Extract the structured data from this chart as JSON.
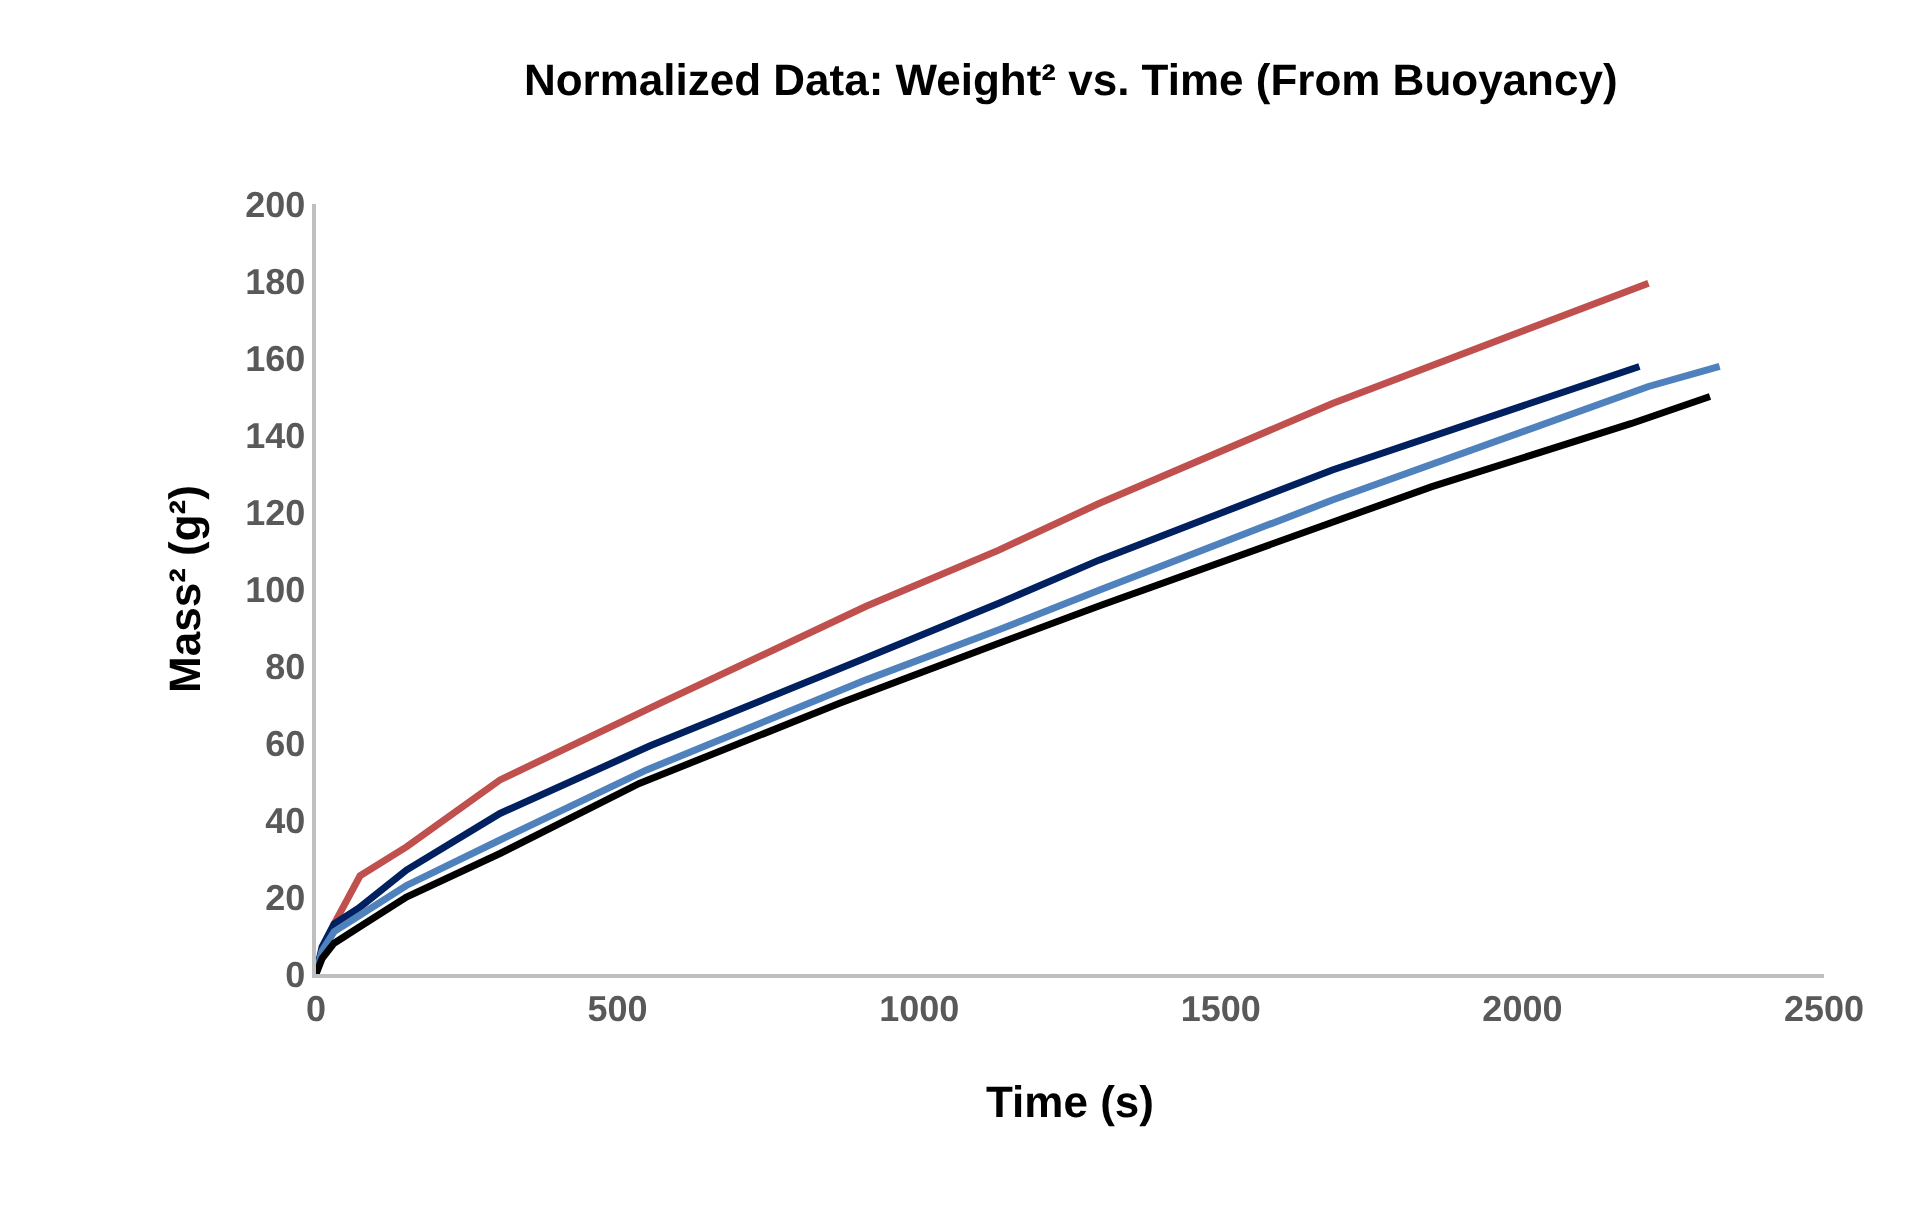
{
  "chart_data": {
    "type": "line",
    "title": "Normalized Data: Weight² vs. Time (From Buoyancy)",
    "xlabel": "Time (s)",
    "ylabel": "Mass² (g²)",
    "xlim": [
      0,
      2500
    ],
    "xticks": [
      0,
      500,
      1000,
      1500,
      2000,
      2500
    ],
    "ylim": [
      0,
      200
    ],
    "yticks": [
      0,
      20,
      40,
      60,
      80,
      100,
      120,
      140,
      160,
      180,
      200
    ],
    "grid": false,
    "series": [
      {
        "color": "#c0504d",
        "x": [
          0,
          10,
          30,
          73,
          150,
          305,
          570,
          912,
          1132,
          1298,
          1685,
          2209
        ],
        "values": [
          0,
          6,
          13,
          25.5,
          33,
          50.4,
          70.3,
          95.5,
          110.1,
          122.2,
          148.2,
          179.4
        ]
      },
      {
        "color": "#002060",
        "x": [
          0,
          10,
          30,
          70,
          150,
          305,
          553,
          890,
          1132,
          1298,
          1685,
          2194
        ],
        "values": [
          0,
          7,
          13,
          17,
          27,
          41.7,
          59.2,
          80.7,
          96.3,
          107.5,
          130.9,
          157.8
        ]
      },
      {
        "color": "#4f81bd",
        "x": [
          0,
          10,
          30,
          70,
          150,
          305,
          548,
          912,
          1132,
          1298,
          1685,
          2209,
          2327
        ],
        "values": [
          0,
          6,
          11,
          15,
          23,
          34.8,
          53,
          76.4,
          89.4,
          99.7,
          123.1,
          152.6,
          157.8
        ]
      },
      {
        "color": "#000000",
        "x": [
          0,
          10,
          30,
          70,
          150,
          305,
          536,
          868,
          1132,
          1298,
          1850,
          2181,
          2311
        ],
        "values": [
          0,
          4,
          8,
          12,
          20,
          31.3,
          49.5,
          70.3,
          85.9,
          95.6,
          126.6,
          143,
          150
        ]
      }
    ]
  }
}
